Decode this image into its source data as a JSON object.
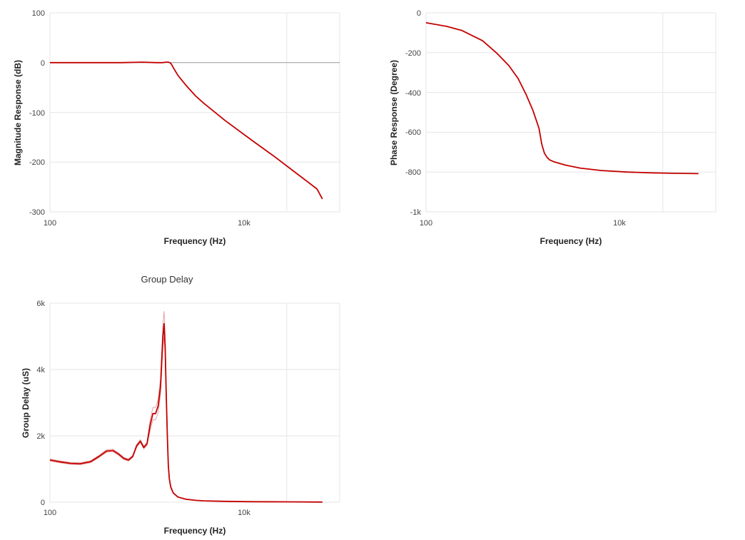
{
  "chart_data": [
    {
      "id": "magnitude",
      "type": "line",
      "title": "",
      "xlabel": "Frequency (Hz)",
      "ylabel": "Magnitude Response (dB)",
      "xscale": "log",
      "xlim": [
        100,
        28000
      ],
      "ylim": [
        -300,
        100
      ],
      "x_ticks": [
        100,
        10000
      ],
      "x_tick_labels": [
        "100",
        "10k"
      ],
      "y_ticks": [
        100,
        0,
        -100,
        -200,
        -300
      ],
      "y_tick_labels": [
        "100",
        "0",
        "-100",
        "-200",
        "-300"
      ],
      "grid": true,
      "color": "#c40000",
      "series": [
        {
          "x": [
            100,
            200,
            400,
            600,
            800,
            900,
            950,
            1000,
            1030,
            1060,
            1100,
            1200,
            1400,
            1700,
            2000,
            3000,
            5000,
            8000,
            12000,
            18000,
            20000
          ],
          "y": [
            0,
            0,
            0,
            1,
            0,
            0,
            1,
            1,
            0,
            -3,
            -10,
            -25,
            -45,
            -67,
            -82,
            -116,
            -155,
            -190,
            -222,
            -254,
            -274
          ]
        }
      ]
    },
    {
      "id": "phase",
      "type": "line",
      "title": "",
      "xlabel": "Frequency (Hz)",
      "ylabel": "Phase Response (Degree)",
      "xscale": "log",
      "xlim": [
        100,
        28000
      ],
      "ylim": [
        -1000,
        0
      ],
      "x_ticks": [
        100,
        10000
      ],
      "x_tick_labels": [
        "100",
        "10k"
      ],
      "y_ticks": [
        0,
        -200,
        -400,
        -600,
        -800,
        -1000
      ],
      "y_tick_labels": [
        "0",
        "-200",
        "-400",
        "-600",
        "-800",
        "-1k"
      ],
      "grid": true,
      "color": "#c40000",
      "series": [
        {
          "x": [
            100,
            150,
            200,
            300,
            400,
            500,
            600,
            700,
            800,
            900,
            950,
            1000,
            1050,
            1100,
            1200,
            1500,
            2000,
            3000,
            5000,
            8000,
            12000,
            20000
          ],
          "y": [
            -50,
            -68,
            -88,
            -140,
            -205,
            -265,
            -330,
            -410,
            -490,
            -580,
            -660,
            -705,
            -725,
            -738,
            -748,
            -765,
            -780,
            -792,
            -800,
            -804,
            -806,
            -808
          ]
        }
      ]
    },
    {
      "id": "group-delay",
      "type": "line",
      "title": "Group Delay",
      "xlabel": "Frequency (Hz)",
      "ylabel": "Group Delay (uS)",
      "xscale": "log",
      "xlim": [
        100,
        28000
      ],
      "ylim": [
        0,
        6000
      ],
      "x_ticks": [
        100,
        10000
      ],
      "x_tick_labels": [
        "100",
        "10k"
      ],
      "y_ticks": [
        6000,
        4000,
        2000,
        0
      ],
      "y_tick_labels": [
        "6k",
        "4k",
        "2k",
        "0"
      ],
      "grid": true,
      "color": "#c40000",
      "series": [
        {
          "x": [
            100,
            120,
            150,
            180,
            220,
            260,
            300,
            340,
            380,
            420,
            460,
            500,
            540,
            580,
            620,
            660,
            700,
            740,
            780,
            820,
            860,
            880,
            900,
            920,
            940,
            960,
            980,
            1000,
            1020,
            1050,
            1100,
            1200,
            1400,
            1700,
            2000,
            3000,
            5000,
            10000,
            20000
          ],
          "y": [
            1270,
            1220,
            1170,
            1160,
            1220,
            1380,
            1540,
            1560,
            1450,
            1320,
            1270,
            1380,
            1700,
            1840,
            1650,
            1760,
            2300,
            2670,
            2670,
            2900,
            3500,
            4300,
            5000,
            5380,
            4700,
            3200,
            2000,
            1100,
            700,
            450,
            280,
            160,
            90,
            55,
            40,
            25,
            15,
            10,
            5
          ]
        }
      ]
    }
  ]
}
